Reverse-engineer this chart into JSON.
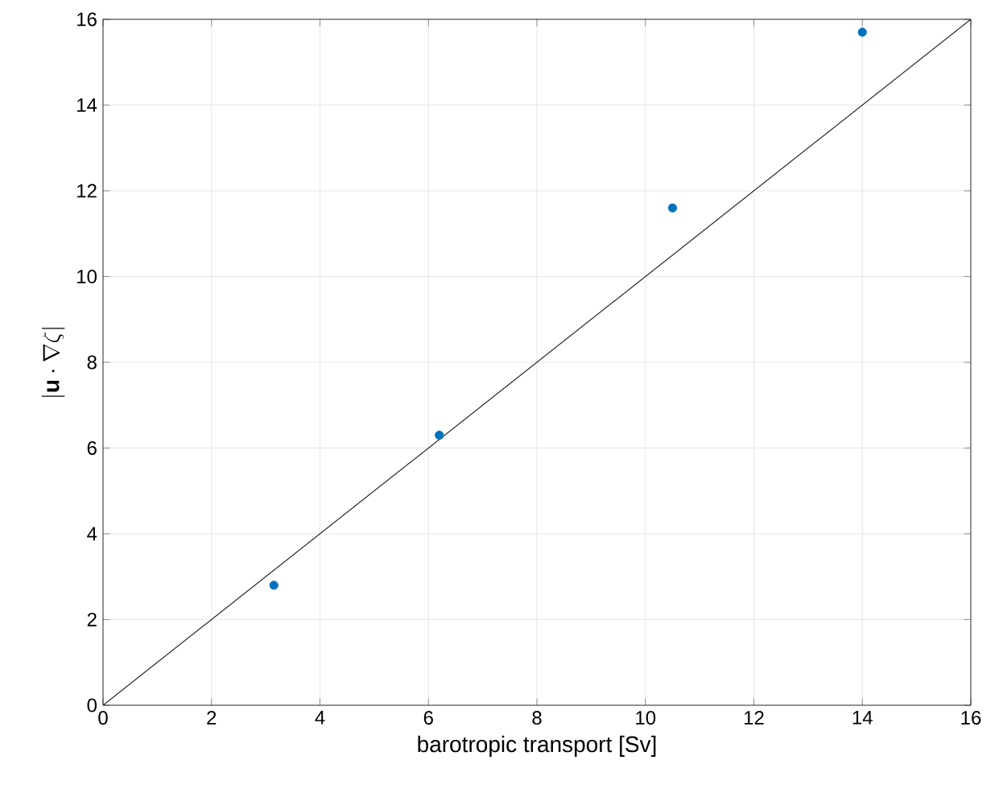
{
  "chart_data": {
    "type": "scatter",
    "xlabel": "barotropic transport [Sv]",
    "ylabel": "|\\mathbf{u}\\cdot\\nabla\\zeta|",
    "xlim": [
      0,
      16
    ],
    "ylim": [
      0,
      16
    ],
    "xticks": [
      0,
      2,
      4,
      6,
      8,
      10,
      12,
      14,
      16
    ],
    "yticks": [
      0,
      2,
      4,
      6,
      8,
      10,
      12,
      14,
      16
    ],
    "grid": true,
    "series": [
      {
        "marker": "circle",
        "color": "#0072bd",
        "x": [
          3.15,
          6.2,
          10.5,
          14.0
        ],
        "values": [
          2.8,
          6.3,
          11.6,
          15.7
        ]
      },
      {
        "type": "line",
        "marker": "none",
        "color": "#262626",
        "x": [
          0,
          16
        ],
        "values": [
          0,
          16
        ]
      }
    ]
  }
}
